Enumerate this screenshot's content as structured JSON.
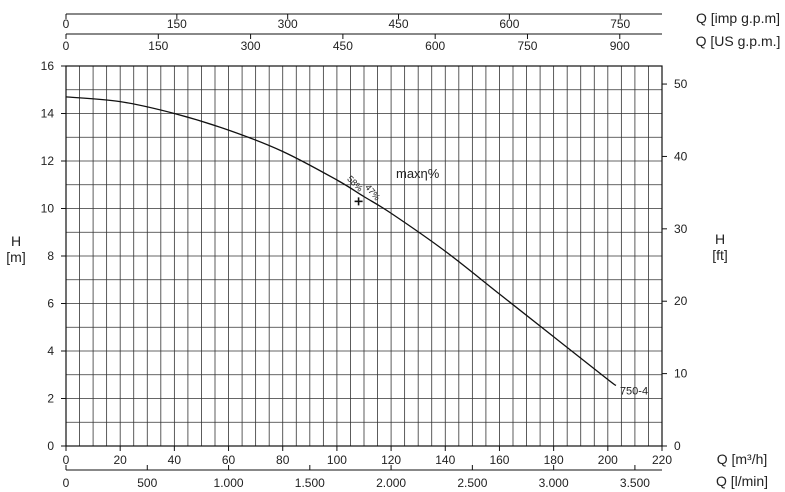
{
  "chart_data": {
    "type": "line",
    "title": "",
    "x_primary": {
      "label": "Q [m³/h]",
      "range": [
        0,
        220
      ],
      "ticks": [
        0,
        20,
        40,
        60,
        80,
        100,
        120,
        140,
        160,
        180,
        200,
        220
      ]
    },
    "x_bottom2": {
      "label": "Q [l/min]",
      "ticks": [
        {
          "value": 0,
          "label": "0"
        },
        {
          "value": 500,
          "label": "500"
        },
        {
          "value": 1000,
          "label": "1.000"
        },
        {
          "value": 1500,
          "label": "1.500"
        },
        {
          "value": 2000,
          "label": "2.000"
        },
        {
          "value": 2500,
          "label": "2.500"
        },
        {
          "value": 3000,
          "label": "3.000"
        },
        {
          "value": 3500,
          "label": "3.500"
        }
      ]
    },
    "x_top1": {
      "label": "Q [imp g.p.m]",
      "ticks": [
        0,
        150,
        300,
        450,
        600,
        750
      ]
    },
    "x_top2": {
      "label": "Q [US g.p.m.]",
      "ticks": [
        0,
        150,
        300,
        450,
        600,
        750,
        900
      ]
    },
    "y_left": {
      "label_line1": "H",
      "label_line2": "[m]",
      "range": [
        0,
        16
      ],
      "ticks": [
        0,
        2,
        4,
        6,
        8,
        10,
        12,
        14,
        16
      ]
    },
    "y_right": {
      "label_line1": "H",
      "label_line2": "[ft]",
      "ticks": [
        0,
        10,
        20,
        30,
        40,
        50
      ]
    },
    "grid": true,
    "series": [
      {
        "name": "750-4",
        "x": [
          0,
          20,
          40,
          60,
          80,
          100,
          110,
          120,
          140,
          160,
          180,
          200,
          203
        ],
        "y": [
          14.7,
          14.5,
          14.0,
          13.3,
          12.4,
          11.2,
          10.5,
          9.8,
          8.2,
          6.4,
          4.6,
          2.8,
          2.55
        ]
      }
    ],
    "annotations": {
      "max_eff_label": "maxη%",
      "bep_point": {
        "x": 108,
        "y": 10.3
      },
      "eff_label_1": "58%",
      "eff_label_2": "47%"
    }
  }
}
